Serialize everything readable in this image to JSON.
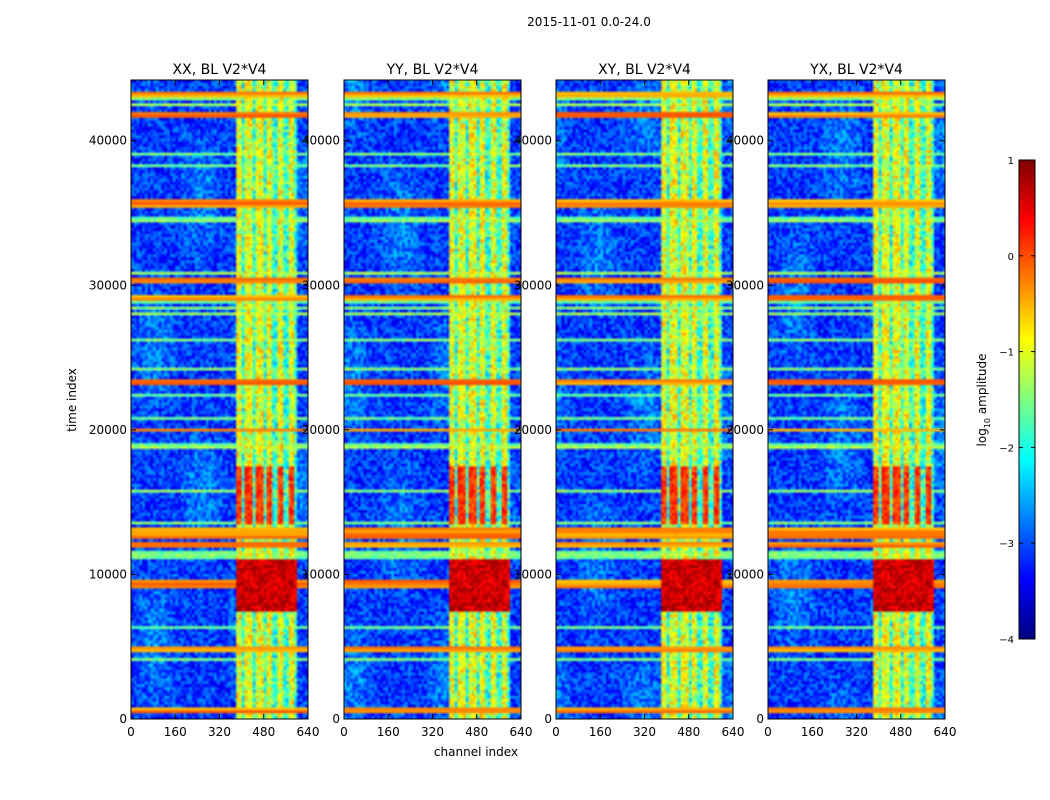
{
  "figure": {
    "suptitle": "2015-11-01 0.0-24.0"
  },
  "chart_data": {
    "type": "heatmap",
    "title": "2015-11-01 0.0-24.0",
    "xlabel": "channel index",
    "ylabel": "time index",
    "xlim": [
      0,
      640
    ],
    "ylim": [
      0,
      44200
    ],
    "x_ticks": [
      0,
      160,
      320,
      480,
      640
    ],
    "y_ticks": [
      0,
      10000,
      20000,
      30000,
      40000
    ],
    "panels": [
      {
        "title": "XX, BL V2*V4",
        "polarization": "XX"
      },
      {
        "title": "YY, BL V2*V4",
        "polarization": "YY"
      },
      {
        "title": "XY, BL V2*V4",
        "polarization": "XY"
      },
      {
        "title": "YX, BL V2*V4",
        "polarization": "YX"
      }
    ],
    "colorbar": {
      "label": "log",
      "label_subscript": "10",
      "label_suffix": " amplitude",
      "range": [
        -4,
        1
      ],
      "ticks": [
        "1",
        "0",
        "−1",
        "−2",
        "−3",
        "−4"
      ],
      "tick_values": [
        1,
        0,
        -1,
        -2,
        -3,
        -4
      ],
      "colormap": "jet",
      "colors": [
        "#00007f",
        "#0000ff",
        "#007fff",
        "#00ffff",
        "#7fff7f",
        "#ffff00",
        "#ff7f00",
        "#ff0000",
        "#7f0000"
      ]
    },
    "features": {
      "rfi_channel_band": [
        385,
        600
      ],
      "bright_rows": [
        600,
        4900,
        9300,
        9500,
        12000,
        12700,
        13100,
        20000,
        23300,
        29200,
        30300,
        35500,
        35800,
        41800,
        43200
      ],
      "strong_burst_time_range": [
        7500,
        11000
      ]
    }
  }
}
